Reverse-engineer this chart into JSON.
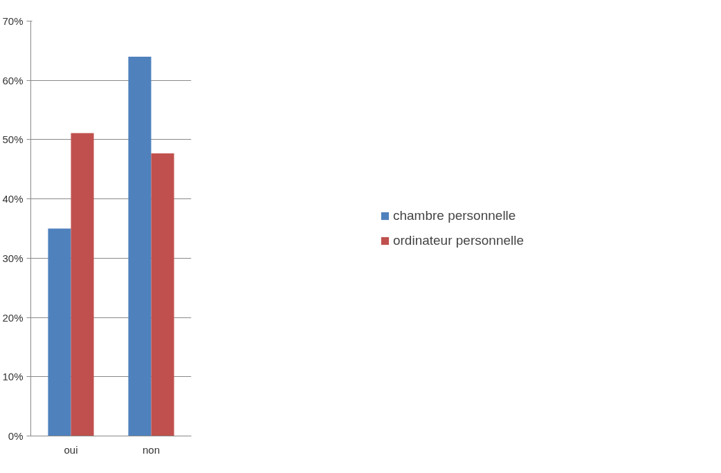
{
  "chart_data": {
    "type": "bar",
    "categories": [
      "oui",
      "non"
    ],
    "series": [
      {
        "name": "chambre personnelle",
        "color": "#4f81bd",
        "values": [
          35.0,
          64.0
        ]
      },
      {
        "name": "ordinateur personnelle",
        "color": "#c0504d",
        "values": [
          51.1,
          47.7
        ]
      }
    ],
    "ylim": [
      0,
      70
    ],
    "yticks": [
      {
        "value": 0,
        "label": "0%"
      },
      {
        "value": 10,
        "label": "10%"
      },
      {
        "value": 20,
        "label": "20%"
      },
      {
        "value": 30,
        "label": "30%"
      },
      {
        "value": 40,
        "label": "40%"
      },
      {
        "value": 50,
        "label": "50%"
      },
      {
        "value": 60,
        "label": "60%"
      },
      {
        "value": 70,
        "label": "70%"
      }
    ],
    "grid": "y",
    "legend": "right"
  }
}
